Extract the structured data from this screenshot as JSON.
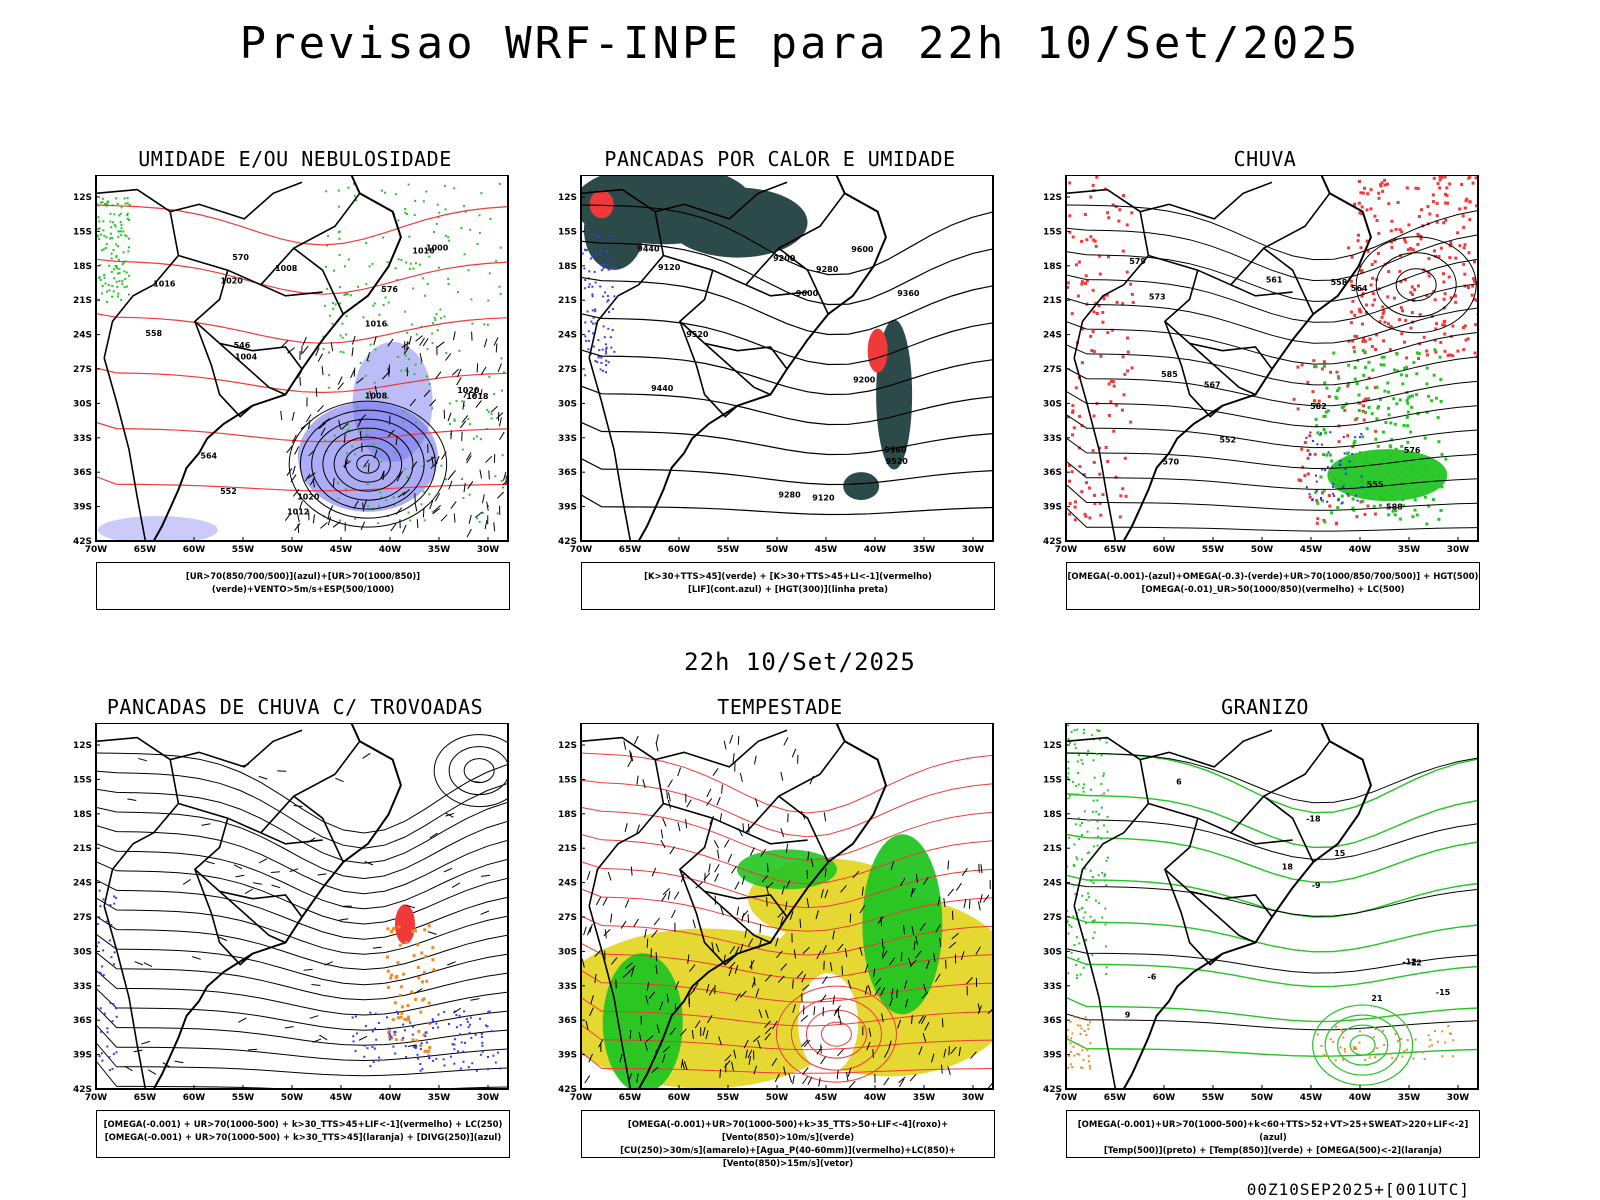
{
  "main_title": "Previsao WRF-INPE  para 22h 10/Set/2025",
  "mid_title": "22h 10/Set/2025",
  "footer": "00Z10SEP2025+[001UTC]",
  "axes": {
    "lat_labels": [
      "12S",
      "15S",
      "18S",
      "21S",
      "24S",
      "27S",
      "30S",
      "33S",
      "36S",
      "39S",
      "42S"
    ],
    "lon_labels": [
      "70W",
      "65W",
      "60W",
      "55W",
      "50W",
      "45W",
      "40W",
      "35W",
      "30W"
    ]
  },
  "colors": {
    "blue": "#6a6af0",
    "green": "#22c522",
    "red": "#f03a3a",
    "orange": "#f08a22",
    "yellow": "#e6d832",
    "teal": "#2d4a4a",
    "black": "#000000"
  },
  "panels": [
    {
      "title": "UMIDADE E/OU NEBULOSIDADE",
      "legend": [
        "[UR>70(850/700/500)](azul)+[UR>70(1000/850)](verde)+VENTO>5m/s+ESP(500/1000)"
      ],
      "contour_labels": [
        "1016",
        "1020",
        "1016",
        "1020",
        "1016",
        "1012",
        "1008",
        "1004",
        "1000",
        "1018",
        "1020",
        "570",
        "576",
        "564",
        "558",
        "552",
        "546",
        "1008"
      ]
    },
    {
      "title": "PANCADAS POR CALOR E UMIDADE",
      "legend": [
        "[K>30+TTS>45](verde) + [K>30+TTS>45+LI<-1](vermelho)",
        "[LIF](cont.azul) + [HGT(300)](linha preta)"
      ],
      "contour_labels": [
        "9600",
        "9520",
        "9440",
        "9360",
        "9280",
        "9200",
        "9120",
        "9600",
        "9520",
        "9440",
        "9360",
        "9280",
        "9200",
        "9120"
      ]
    },
    {
      "title": "CHUVA",
      "legend": [
        "[OMEGA(-0.001)-(azul)+OMEGA(-0.3)-(verde)+UR>70(1000/850/700/500)] + HGT(500)",
        "[OMEGA(-0.01)_UR>50(1000/850)(vermelho) + LC(500)"
      ],
      "contour_labels": [
        "588",
        "585",
        "582",
        "579",
        "576",
        "573",
        "570",
        "567",
        "564",
        "561",
        "558",
        "555",
        "552"
      ]
    },
    {
      "title": "PANCADAS DE CHUVA C/ TROVOADAS",
      "legend": [
        "[OMEGA(-0.001) + UR>70(1000-500) + k>30_TTS>45+LIF<-1](vermelho) + LC(250)",
        "[OMEGA(-0.001) + UR>70(1000-500) + k>30_TTS>45](laranja) + [DIVG(250)](azul)"
      ],
      "contour_labels": []
    },
    {
      "title": "TEMPESTADE",
      "legend": [
        "[OMEGA(-0.001)+UR>70(1000-500)+k>35_TTS>50+LIF<-4](roxo)+[Vento(850)>10m/s](verde)",
        "[CU(250)>30m/s](amarelo)+[Agua_P(40-60mm)](vermelho)+LC(850)+[Vento(850)>15m/s](vetor)"
      ],
      "contour_labels": []
    },
    {
      "title": "GRANIZO",
      "legend": [
        "[OMEGA(-0.001)+UR>70(1000-500)+k<60+TTS>52+VT>25+SWEAT>220+LIF<-2](azul)",
        "[Temp(500)](preto) + [Temp(850)](verde) + [OMEGA(500)<-2](laranja)"
      ],
      "contour_labels": [
        "-6",
        "-9",
        "-12",
        "-15",
        "-18",
        "21",
        "18",
        "15",
        "12",
        "9",
        "6"
      ]
    }
  ]
}
